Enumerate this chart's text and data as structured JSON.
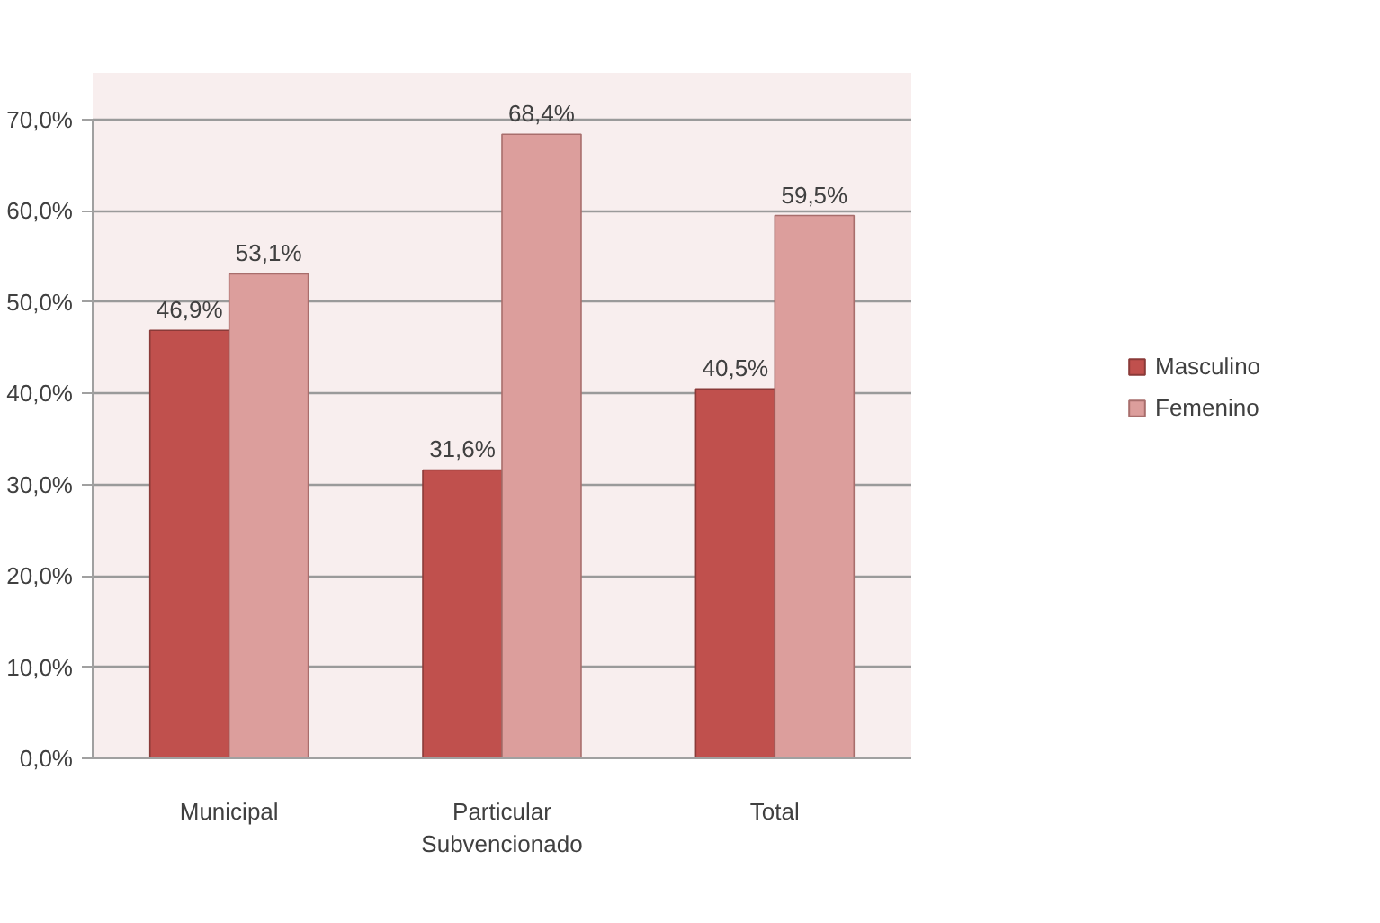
{
  "chart_data": {
    "type": "bar",
    "categories": [
      "Municipal",
      "Particular Subvencionado",
      "Total"
    ],
    "series": [
      {
        "name": "Masculino",
        "color": "#c0504d",
        "values": [
          46.9,
          31.6,
          40.5
        ],
        "value_labels": [
          "46,9%",
          "31,6%",
          "40,5%"
        ]
      },
      {
        "name": "Femenino",
        "color": "#dc9e9c",
        "values": [
          53.1,
          68.4,
          59.5
        ],
        "value_labels": [
          "53,1%",
          "68,4%",
          "59,5%"
        ]
      }
    ],
    "ylim": [
      0,
      70
    ],
    "yticks": [
      {
        "value": 0,
        "label": "0,0%"
      },
      {
        "value": 10,
        "label": "10,0%"
      },
      {
        "value": 20,
        "label": "20,0%"
      },
      {
        "value": 30,
        "label": "30,0%"
      },
      {
        "value": 40,
        "label": "40,0%"
      },
      {
        "value": 50,
        "label": "50,0%"
      },
      {
        "value": 60,
        "label": "60,0%"
      },
      {
        "value": 70,
        "label": "70,0%"
      }
    ],
    "grid": "y",
    "legend": "right"
  }
}
